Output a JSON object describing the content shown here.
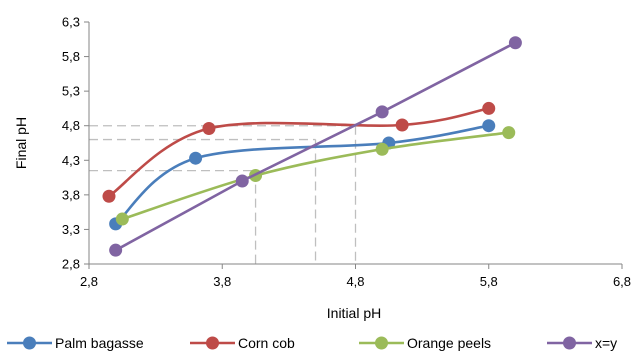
{
  "chart_data": {
    "type": "line",
    "xlabel": "Initial pH",
    "ylabel": "Final pH",
    "xlim": [
      2.8,
      6.8
    ],
    "ylim": [
      2.8,
      6.3
    ],
    "x_ticks": [
      2.8,
      3.8,
      4.8,
      5.8,
      6.8
    ],
    "x_tick_labels": [
      "2,8",
      "3,8",
      "4,8",
      "5,8",
      "6,8"
    ],
    "y_ticks": [
      2.8,
      3.3,
      3.8,
      4.3,
      4.8,
      5.3,
      5.8,
      6.3
    ],
    "y_tick_labels": [
      "2,8",
      "3,3",
      "3,8",
      "4,3",
      "4,8",
      "5,3",
      "5,8",
      "6,3"
    ],
    "grid": false,
    "legend_position": "bottom",
    "series": [
      {
        "name": "Palm bagasse",
        "color": "#4a7ebb",
        "x": [
          3.0,
          3.6,
          5.05,
          5.8
        ],
        "y": [
          3.38,
          4.33,
          4.55,
          4.8
        ]
      },
      {
        "name": "Corn cob",
        "color": "#be4b48",
        "x": [
          2.95,
          3.7,
          5.15,
          5.8
        ],
        "y": [
          3.78,
          4.76,
          4.81,
          5.05
        ]
      },
      {
        "name": "Orange peels",
        "color": "#9bbb59",
        "x": [
          3.05,
          4.05,
          5.0,
          5.95
        ],
        "y": [
          3.45,
          4.08,
          4.46,
          4.7
        ]
      },
      {
        "name": "x=y",
        "color": "#8064a2",
        "x": [
          3.0,
          3.95,
          5.0,
          6.0
        ],
        "y": [
          3.0,
          4.0,
          5.0,
          6.0
        ]
      }
    ],
    "reference_lines": [
      {
        "y": 4.8,
        "x_end": 4.8
      },
      {
        "y": 4.6,
        "x_end": 4.5
      },
      {
        "y": 4.15,
        "x_end": 4.05
      }
    ]
  }
}
